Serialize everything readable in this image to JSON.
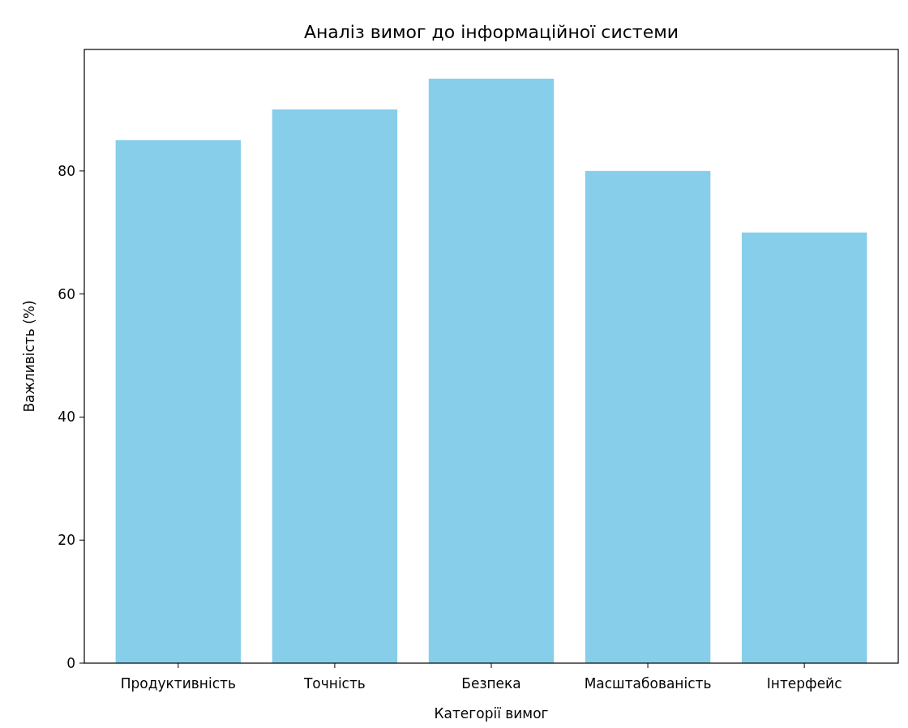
{
  "chart_data": {
    "type": "bar",
    "title": "Аналіз вимог до інформаційної системи",
    "xlabel": "Категорії вимог",
    "ylabel": "Важливість (%)",
    "categories": [
      "Продуктивність",
      "Точність",
      "Безпека",
      "Масштабованість",
      "Інтерфейс"
    ],
    "values": [
      85,
      90,
      95,
      80,
      70
    ],
    "color": "#87ceeb",
    "ylim": [
      0,
      99.75
    ],
    "yticks": [
      0,
      20,
      40,
      60,
      80
    ]
  }
}
